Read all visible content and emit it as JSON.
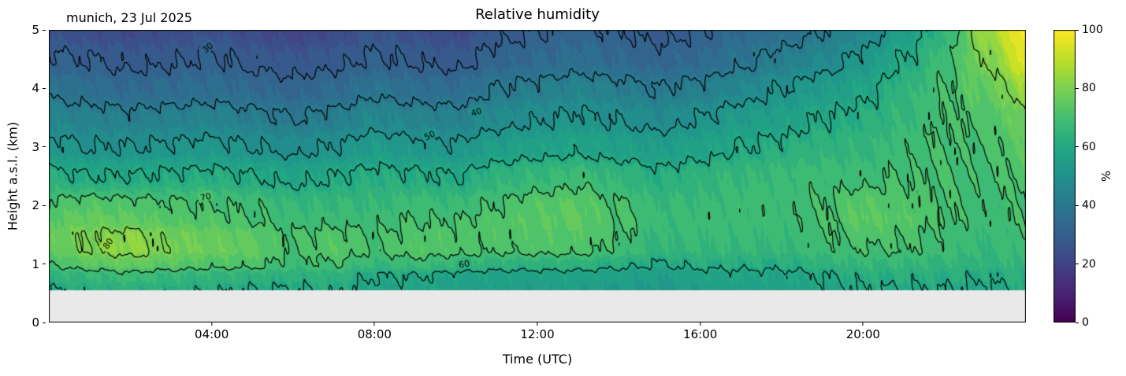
{
  "header": {
    "title": "Relative humidity",
    "location_date": "munich, 23 Jul 2025"
  },
  "axes": {
    "x_label": "Time (UTC)",
    "y_label": "Height a.s.l. (km)",
    "x_range": [
      0,
      24
    ],
    "y_range": [
      0,
      5
    ],
    "x_ticks": [
      {
        "value": 4,
        "label": "04:00"
      },
      {
        "value": 8,
        "label": "08:00"
      },
      {
        "value": 12,
        "label": "12:00"
      },
      {
        "value": 16,
        "label": "16:00"
      },
      {
        "value": 20,
        "label": "20:00"
      }
    ],
    "y_ticks": [
      {
        "value": 0,
        "label": "0"
      },
      {
        "value": 1,
        "label": "1"
      },
      {
        "value": 2,
        "label": "2"
      },
      {
        "value": 3,
        "label": "3"
      },
      {
        "value": 4,
        "label": "4"
      },
      {
        "value": 5,
        "label": "5"
      }
    ]
  },
  "colorbar": {
    "label": "%",
    "min": 0,
    "max": 100,
    "ticks": [
      0,
      20,
      40,
      60,
      80,
      100
    ]
  },
  "colormap": {
    "name": "viridis",
    "anchors": [
      "#440154",
      "#482475",
      "#414487",
      "#355f8d",
      "#2a788e",
      "#21918c",
      "#22a884",
      "#44bf70",
      "#7ad151",
      "#bddf26",
      "#fde725"
    ]
  },
  "chart_data": {
    "type": "heatmap",
    "title": "Relative humidity",
    "xlabel": "Time (UTC)",
    "ylabel": "Height a.s.l. (km)",
    "units": "%",
    "value_range": [
      0,
      100
    ],
    "x_hours": [
      0,
      1,
      2,
      3,
      4,
      5,
      6,
      7,
      8,
      9,
      10,
      11,
      12,
      13,
      14,
      15,
      16,
      17,
      18,
      19,
      20,
      21,
      22,
      23,
      24
    ],
    "y_km": [
      0.55,
      0.8,
      1.0,
      1.25,
      1.5,
      1.75,
      2.0,
      2.5,
      3.0,
      3.5,
      4.0,
      4.5,
      5.0
    ],
    "values": [
      [
        60,
        62,
        63,
        62,
        61,
        60,
        60,
        61,
        58,
        58,
        56,
        55,
        55,
        55,
        54,
        53,
        55,
        56,
        56,
        58,
        60,
        60,
        60,
        59,
        61
      ],
      [
        64,
        66,
        68,
        66,
        65,
        64,
        63,
        64,
        60,
        60,
        58,
        57,
        57,
        57,
        56,
        55,
        57,
        58,
        58,
        60,
        62,
        62,
        62,
        61,
        63
      ],
      [
        70,
        74,
        76,
        74,
        72,
        72,
        68,
        70,
        66,
        68,
        66,
        64,
        64,
        64,
        62,
        60,
        62,
        62,
        62,
        64,
        66,
        66,
        65,
        64,
        66
      ],
      [
        75,
        80,
        83,
        79,
        77,
        75,
        70,
        73,
        70,
        73,
        72,
        71,
        72,
        72,
        69,
        65,
        66,
        66,
        66,
        68,
        70,
        70,
        68,
        66,
        68
      ],
      [
        76,
        80,
        82,
        78,
        76,
        74,
        70,
        72,
        70,
        72,
        72,
        72,
        73,
        73,
        70,
        66,
        67,
        67,
        67,
        69,
        72,
        71,
        69,
        67,
        69
      ],
      [
        74,
        76,
        75,
        73,
        72,
        70,
        68,
        68,
        68,
        70,
        70,
        72,
        74,
        75,
        71,
        67,
        68,
        68,
        68,
        70,
        75,
        73,
        70,
        68,
        70
      ],
      [
        71,
        73,
        72,
        71,
        70,
        69,
        66,
        66,
        66,
        68,
        67,
        70,
        73,
        74,
        70,
        66,
        67,
        68,
        68,
        70,
        74,
        72,
        70,
        68,
        70
      ],
      [
        62,
        60,
        60,
        61,
        62,
        60,
        58,
        60,
        62,
        61,
        60,
        64,
        66,
        68,
        65,
        62,
        64,
        66,
        67,
        68,
        68,
        70,
        70,
        69,
        72
      ],
      [
        52,
        50,
        50,
        51,
        52,
        50,
        48,
        50,
        54,
        52,
        51,
        55,
        57,
        58,
        56,
        54,
        57,
        60,
        62,
        64,
        65,
        68,
        70,
        70,
        74
      ],
      [
        45,
        43,
        42,
        43,
        44,
        42,
        40,
        42,
        46,
        44,
        43,
        47,
        49,
        51,
        49,
        47,
        50,
        54,
        56,
        60,
        62,
        66,
        70,
        72,
        78
      ],
      [
        38,
        36,
        34,
        35,
        36,
        34,
        32,
        34,
        38,
        36,
        35,
        40,
        42,
        44,
        42,
        40,
        42,
        46,
        50,
        54,
        58,
        64,
        70,
        75,
        85
      ],
      [
        31,
        30,
        28,
        29,
        31,
        28,
        27,
        28,
        31,
        29,
        28,
        32,
        34,
        36,
        34,
        32,
        34,
        38,
        42,
        46,
        52,
        60,
        68,
        80,
        95
      ],
      [
        25,
        23,
        22,
        23,
        25,
        22,
        20,
        22,
        26,
        24,
        22,
        28,
        30,
        32,
        30,
        28,
        30,
        34,
        36,
        40,
        45,
        55,
        65,
        85,
        100
      ]
    ],
    "contour_levels": [
      30,
      40,
      50,
      60,
      70,
      80
    ],
    "contour_line_color": "#000000",
    "contour_labels": [
      {
        "level": "30",
        "t": 3.9,
        "h": 4.7,
        "rot": -40
      },
      {
        "level": "50",
        "t": 9.35,
        "h": 3.2,
        "rot": -28
      },
      {
        "level": "40",
        "t": 10.5,
        "h": 3.6,
        "rot": -20
      },
      {
        "level": "70",
        "t": 3.85,
        "h": 2.15,
        "rot": -12
      },
      {
        "level": "80",
        "t": 1.45,
        "h": 1.35,
        "rot": -55
      },
      {
        "level": "60",
        "t": 10.2,
        "h": 1.0,
        "rot": -10
      }
    ],
    "no_data_below_km": 0.55,
    "no_data_color": "#e9e9e9"
  }
}
